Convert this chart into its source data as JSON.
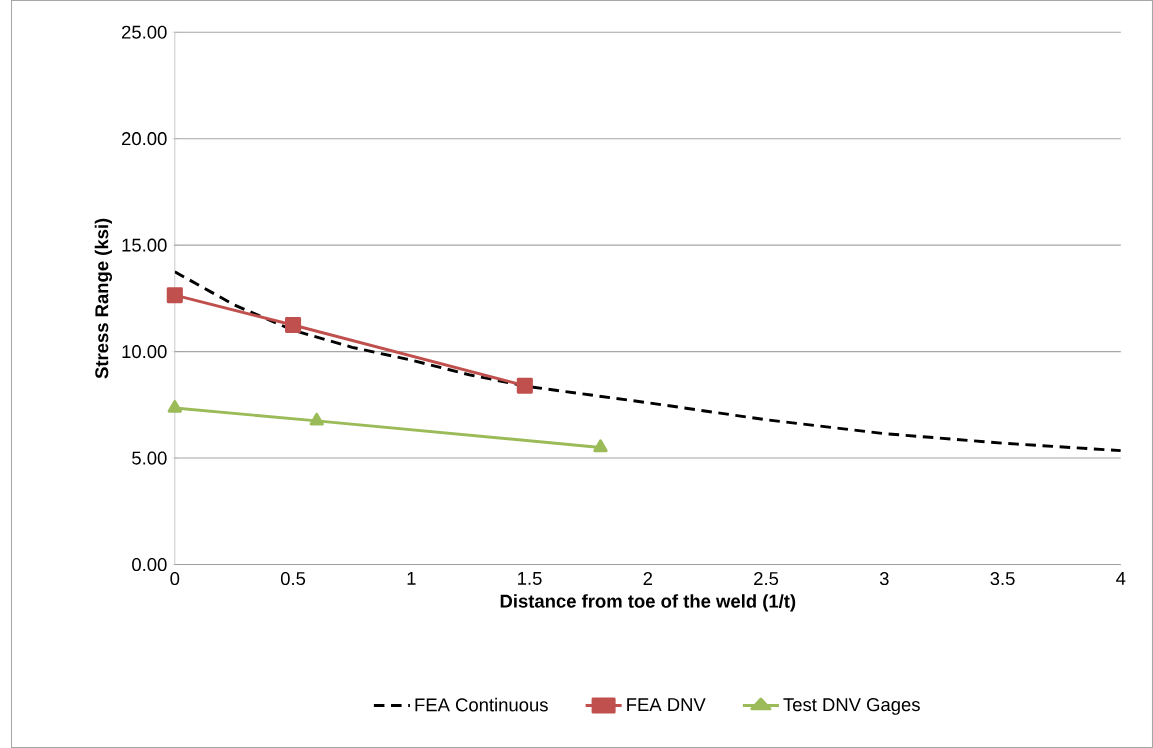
{
  "chart_data": {
    "type": "line",
    "xlabel": "Distance from toe of the weld (1/t)",
    "ylabel": "Stress Range (ksi)",
    "xlim": [
      0,
      4
    ],
    "ylim": [
      0,
      25
    ],
    "xticks": [
      0,
      0.5,
      1,
      1.5,
      2,
      2.5,
      3,
      3.5,
      4
    ],
    "yticks": [
      {
        "value": 0,
        "label": "0.00"
      },
      {
        "value": 5,
        "label": "5.00"
      },
      {
        "value": 10,
        "label": "10.00"
      },
      {
        "value": 15,
        "label": "15.00"
      },
      {
        "value": 20,
        "label": "20.00"
      },
      {
        "value": 25,
        "label": "25.00"
      }
    ],
    "grid": "y",
    "legend": "bottom",
    "series": [
      {
        "name": "FEA Continuous",
        "color": "#000000",
        "line_style": "dashed",
        "marker": "none",
        "x": [
          0,
          0.25,
          0.5,
          0.75,
          1,
          1.25,
          1.5,
          2,
          2.5,
          3,
          3.5,
          4
        ],
        "values": [
          13.75,
          12.2,
          11.0,
          10.2,
          9.6,
          8.9,
          8.35,
          7.6,
          6.8,
          6.15,
          5.7,
          5.35
        ]
      },
      {
        "name": "FEA DNV",
        "color": "#c0504d",
        "line_style": "solid",
        "marker": "square",
        "x": [
          0,
          0.5,
          1.48
        ],
        "values": [
          12.65,
          11.25,
          8.4
        ]
      },
      {
        "name": "Test DNV Gages",
        "color": "#9bbb59",
        "line_style": "solid",
        "marker": "triangle",
        "x": [
          0,
          0.6,
          1.8
        ],
        "values": [
          7.35,
          6.75,
          5.5
        ]
      }
    ]
  }
}
